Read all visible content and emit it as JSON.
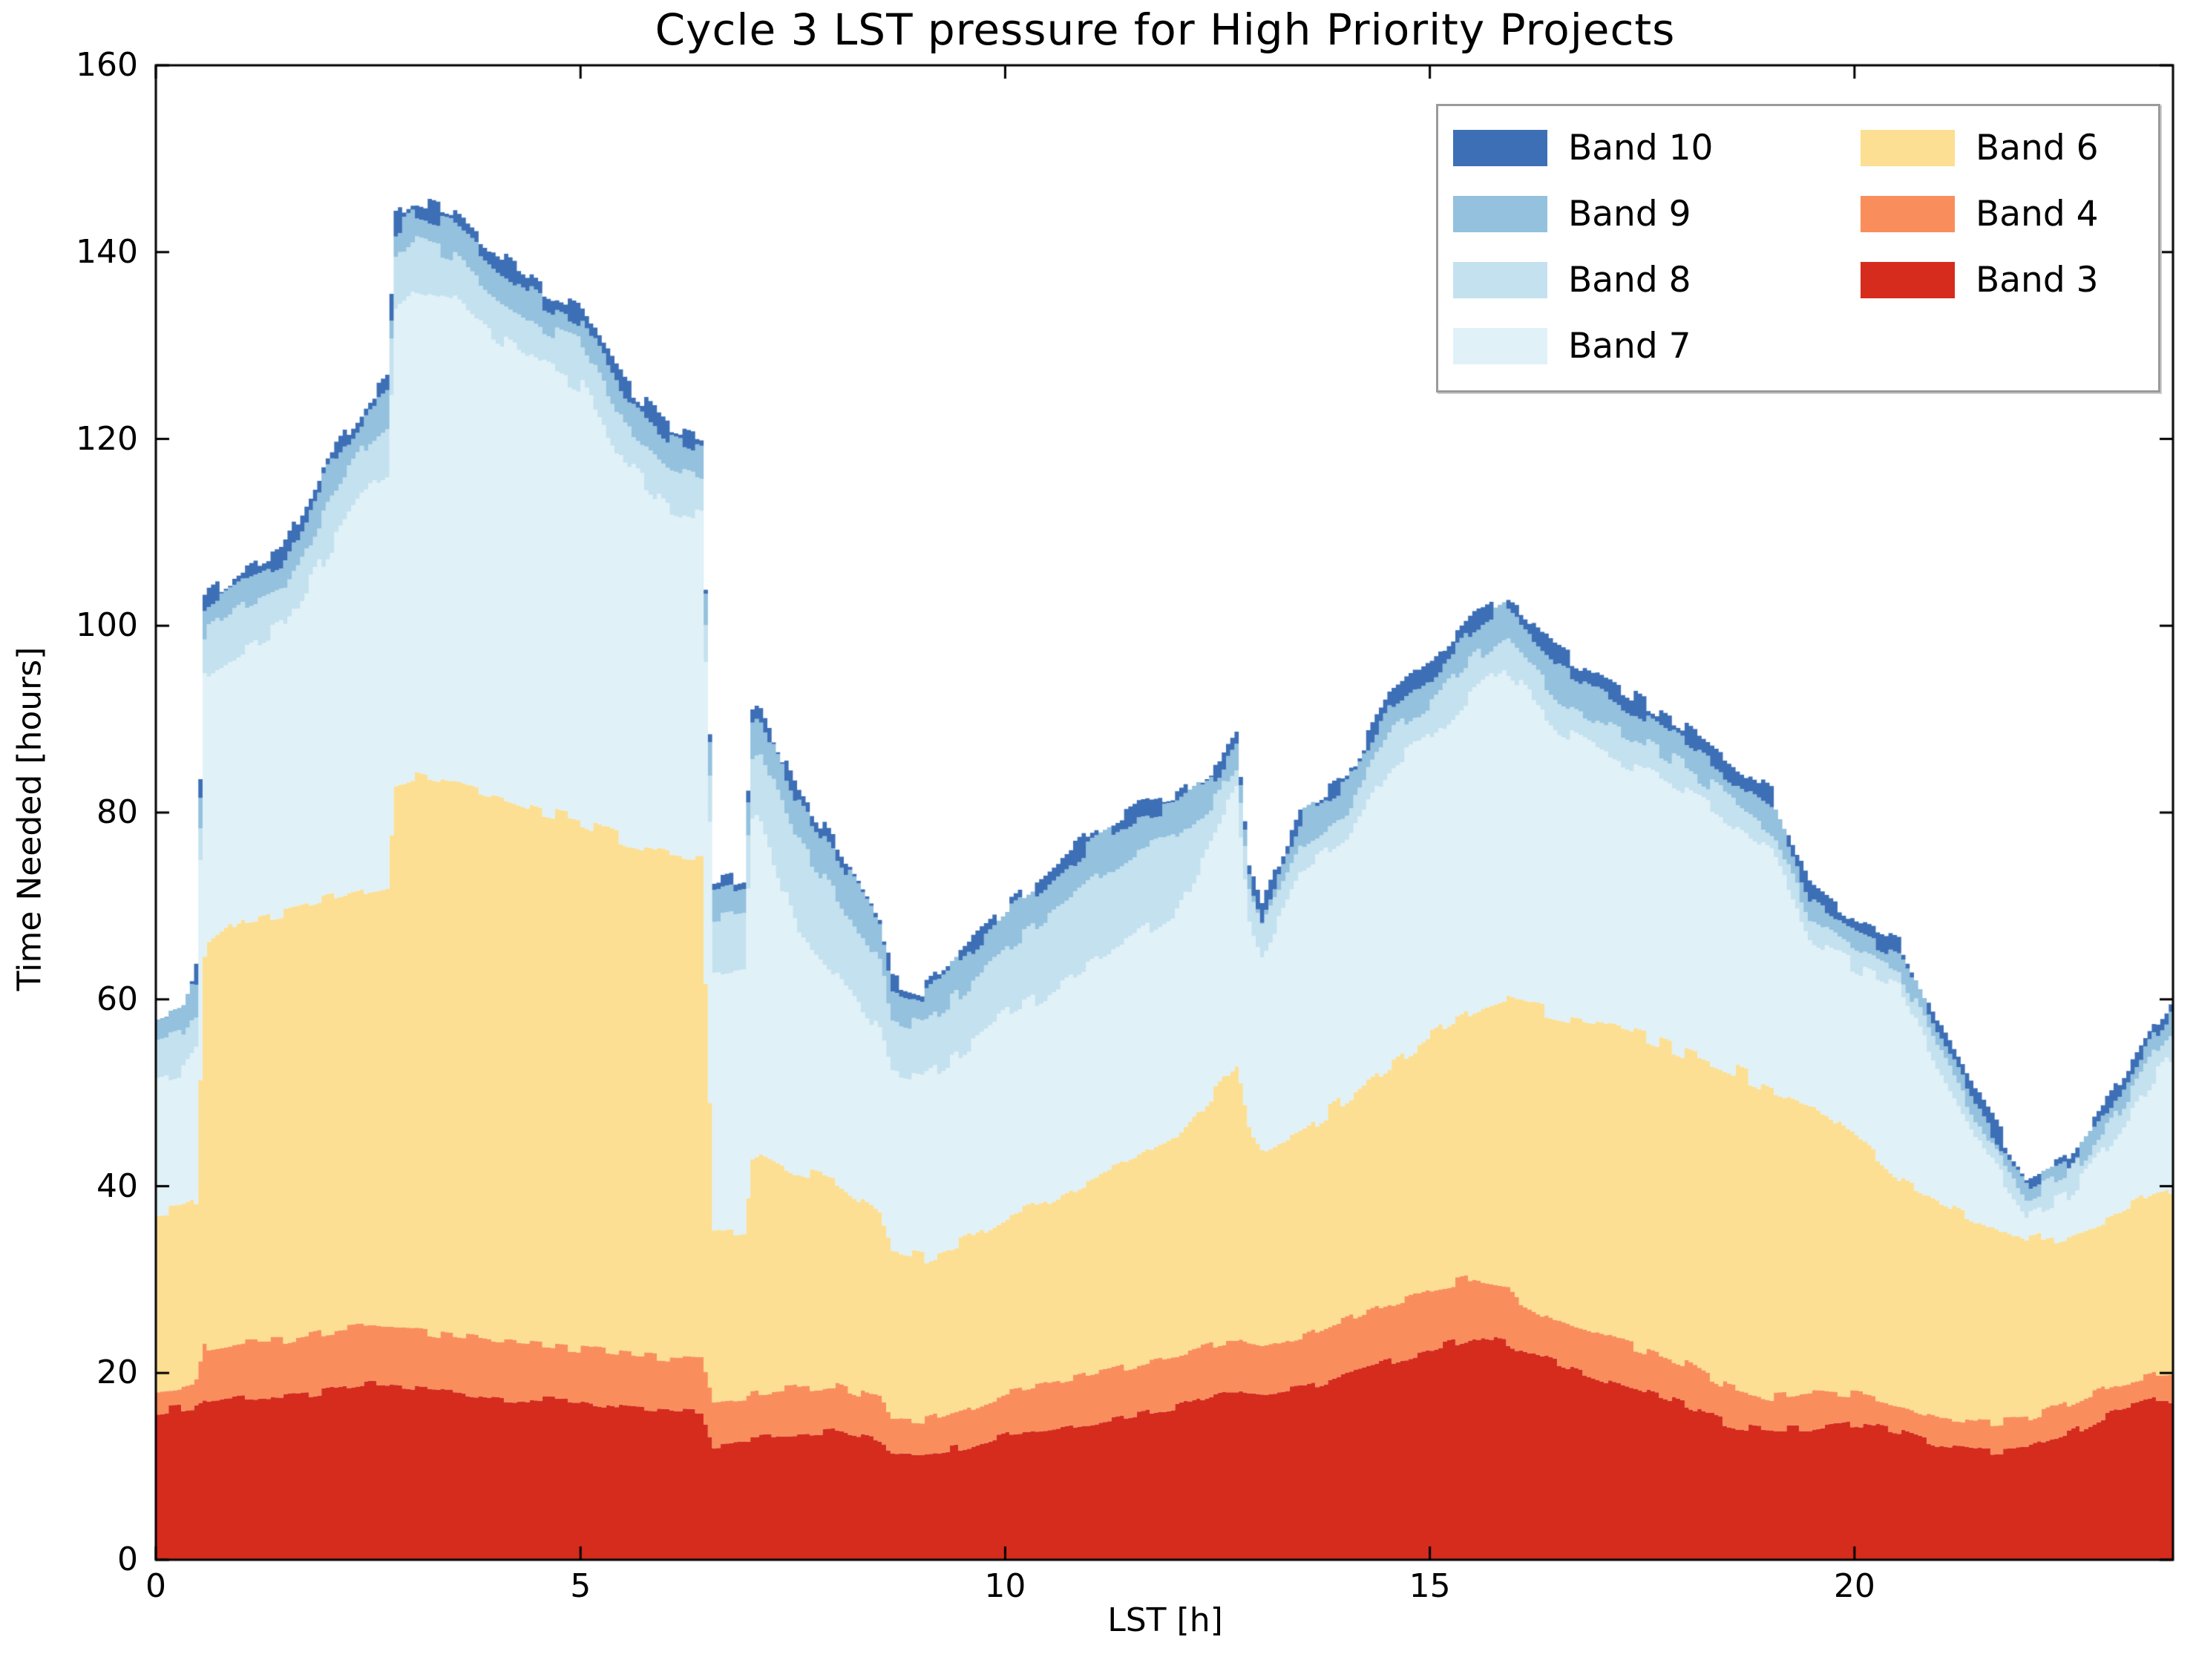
{
  "title": "Cycle 3 LST pressure for High Priority Projects",
  "axes": {
    "x": {
      "label": "LST [h]",
      "min": 0,
      "max": 23.75,
      "ticks": [
        0,
        5,
        10,
        15,
        20
      ]
    },
    "y": {
      "label": "Time Needed [hours]",
      "min": 0,
      "max": 160,
      "ticks": [
        0,
        20,
        40,
        60,
        80,
        100,
        120,
        140,
        160
      ]
    }
  },
  "legend": {
    "columns": [
      [
        "Band 10",
        "Band 9",
        "Band 8",
        "Band 7"
      ],
      [
        "Band 6",
        "Band 4",
        "Band 3"
      ]
    ]
  },
  "chart_data": {
    "type": "area",
    "stacked": true,
    "title": "Cycle 3 LST pressure for High Priority Projects",
    "xlabel": "LST [h]",
    "ylabel": "Time Needed [hours]",
    "xlim": [
      0,
      23.75
    ],
    "ylim": [
      0,
      160
    ],
    "grid": false,
    "legend_position": "upper right",
    "bands_bottom_to_top": [
      "Band 3",
      "Band 4",
      "Band 6",
      "Band 7",
      "Band 8",
      "Band 9",
      "Band 10"
    ],
    "colors": {
      "Band 10": "#3d6fb6",
      "Band 9": "#93c1de",
      "Band 8": "#c4e1ef",
      "Band 7": "#e0f1f8",
      "Band 6": "#fcdf92",
      "Band 4": "#f98e5c",
      "Band 3": "#d52c1e"
    },
    "x_hours": [
      0,
      0.3,
      0.45,
      0.55,
      1,
      1.5,
      2,
      2.5,
      2.7,
      2.8,
      3,
      3.5,
      4,
      4.5,
      5,
      5.5,
      6,
      6.4,
      6.55,
      6.9,
      7,
      7.1,
      7.5,
      8,
      8.5,
      8.65,
      9,
      9.5,
      10,
      10.5,
      11,
      11.5,
      12,
      12.5,
      12.6,
      12.7,
      12.85,
      13,
      13.5,
      14,
      14.5,
      15,
      15.5,
      15.85,
      16,
      16.5,
      17,
      17.5,
      18,
      18.5,
      19,
      19.5,
      20,
      20.5,
      21,
      21.5,
      22,
      22.5,
      23,
      23.5,
      23.75,
      24
    ],
    "cumulative_from_bottom": true,
    "cumulative_tops": {
      "Band 3": [
        16,
        16.3,
        16.5,
        17,
        17.5,
        17.3,
        18,
        18.8,
        18.7,
        18.6,
        18.4,
        18,
        17.4,
        17.1,
        17,
        16.1,
        15.9,
        15.7,
        12.2,
        12.4,
        13.3,
        13.4,
        13.6,
        13.8,
        12.7,
        11.6,
        11.5,
        12.2,
        13.6,
        14,
        14.8,
        15.6,
        16.5,
        18.1,
        18.3,
        18.3,
        17.9,
        17.7,
        18.4,
        19.8,
        21.2,
        22.6,
        23.9,
        23.3,
        22.5,
        21,
        19.5,
        18,
        16.5,
        14.5,
        14,
        14,
        14.7,
        13.8,
        12.2,
        11.6,
        11.8,
        13.5,
        15.8,
        17,
        17,
        16.8
      ],
      "Band 4": [
        18.3,
        18.7,
        19,
        22.8,
        23.5,
        23.5,
        24.5,
        25,
        24.9,
        24.8,
        24.7,
        24,
        23.3,
        23,
        22.6,
        22,
        21.6,
        21.3,
        16.6,
        16.9,
        17.9,
        18,
        18.4,
        18.8,
        17.1,
        15,
        14.8,
        16.1,
        17.9,
        18.8,
        19.8,
        20.8,
        21.9,
        23.3,
        23.5,
        23.5,
        22.9,
        22.6,
        23.9,
        25.7,
        27.5,
        29.1,
        30.2,
        29.6,
        28,
        25.5,
        24,
        22.5,
        21,
        18.5,
        17.5,
        18,
        17.8,
        16.8,
        15.3,
        14.8,
        15,
        16.8,
        18.8,
        19.8,
        19.9,
        20
      ],
      "Band 6": [
        37.5,
        37.8,
        38.5,
        65,
        68.5,
        69.5,
        70.8,
        72,
        72.5,
        83,
        83.7,
        82.7,
        81.5,
        80,
        79,
        77.2,
        76,
        75.5,
        34.5,
        35,
        43.3,
        43.8,
        41.8,
        40.5,
        37.1,
        32.8,
        32.2,
        34,
        36.8,
        38.4,
        40.7,
        42.6,
        45.5,
        50.9,
        52,
        53,
        46,
        44,
        46.1,
        49.5,
        53,
        56.1,
        58.9,
        60,
        59.5,
        58.3,
        57.3,
        56.1,
        54.2,
        52.6,
        50.6,
        49,
        45,
        41,
        38.5,
        36.3,
        33.8,
        35,
        37,
        39.4,
        40,
        40.4
      ],
      "Band 7": [
        51.7,
        52.5,
        54.5,
        94.5,
        97.5,
        100,
        108,
        114.8,
        116,
        134.5,
        136.5,
        135.2,
        131,
        127.8,
        125.7,
        117.5,
        112.7,
        111.5,
        63,
        63.5,
        78.5,
        79.3,
        68.2,
        62.9,
        56.3,
        52,
        51.3,
        54.7,
        58.3,
        60.9,
        64,
        66.6,
        69.5,
        78.5,
        80.5,
        82,
        68.5,
        65.1,
        74.1,
        77.5,
        84.8,
        88.2,
        93.1,
        95.5,
        94,
        88.9,
        86.5,
        84.5,
        82,
        79.1,
        75.8,
        66,
        63.5,
        61.5,
        52.3,
        43.8,
        37.3,
        39.2,
        44.6,
        51.6,
        54,
        55.7
      ],
      "Band 8": [
        55.4,
        56.2,
        58.5,
        99,
        102,
        104,
        113,
        120,
        121.5,
        139,
        141,
        139.7,
        135.3,
        132,
        130,
        121.5,
        117.2,
        116,
        69,
        69.5,
        85.8,
        86.6,
        77.5,
        71.2,
        63.7,
        58.2,
        57.3,
        61.2,
        65.6,
        68.9,
        72.6,
        75.8,
        77.5,
        81.7,
        83.6,
        84.8,
        71,
        67.5,
        76.8,
        80.2,
        88.2,
        91.7,
        96.7,
        99,
        97.5,
        92.3,
        89.9,
        87.6,
        84.8,
        81.7,
        78.2,
        68.2,
        65.3,
        63.3,
        54,
        45.8,
        39,
        41.2,
        46.8,
        54.2,
        57,
        58.8
      ],
      "Band 9": [
        57.7,
        58.6,
        62,
        102,
        105,
        107,
        116.5,
        123,
        124.5,
        142.5,
        144,
        142.8,
        138.5,
        134.8,
        132.6,
        124.5,
        120.3,
        119,
        71.5,
        72.3,
        89.4,
        90.2,
        81.7,
        75.3,
        67.9,
        61.2,
        60.2,
        64.6,
        69.2,
        72.6,
        76.8,
        79.6,
        80.5,
        84.5,
        86.3,
        87.6,
        73.3,
        69,
        79.9,
        82.8,
        91.3,
        94.8,
        99.8,
        101.8,
        100.5,
        95.6,
        93.1,
        90.3,
        87.2,
        84,
        80.6,
        70.2,
        67,
        65,
        55.5,
        47.3,
        40.3,
        42.5,
        48.4,
        56,
        59,
        60.6
      ],
      "Band 10": [
        58.3,
        59.3,
        63.5,
        103,
        106,
        108.5,
        118,
        124.5,
        126.2,
        144,
        145.5,
        144,
        140,
        136.3,
        134,
        126,
        121.6,
        120.5,
        72.5,
        73.3,
        90.7,
        91.5,
        83,
        76.4,
        68.9,
        62,
        61,
        65.4,
        70,
        73.7,
        77.8,
        80.6,
        81.5,
        85.3,
        87.2,
        88.5,
        74.3,
        70,
        80.9,
        83.8,
        92.3,
        95.9,
        100.8,
        102.8,
        102,
        97.2,
        94.6,
        91.7,
        88.9,
        85.5,
        82,
        71.5,
        68,
        66,
        56.5,
        48.5,
        41.2,
        43.5,
        49.5,
        57,
        60,
        61.6
      ]
    }
  }
}
